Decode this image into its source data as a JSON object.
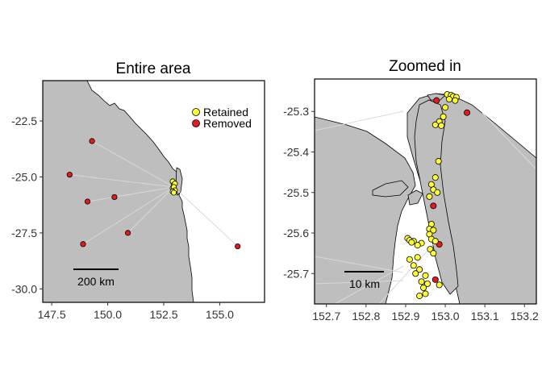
{
  "colors": {
    "land": "#bebebe",
    "sea": "#ffffff",
    "retained": "#ffff33",
    "removed": "#e41a1c",
    "outline": "#000000",
    "track": "#d9d9d9"
  },
  "legend": {
    "items": [
      {
        "label": "Retained",
        "color": "#ffff33"
      },
      {
        "label": "Removed",
        "color": "#e41a1c"
      }
    ],
    "placement": "top-right of left panel"
  },
  "chart_data": [
    {
      "type": "scatter",
      "title": "Entire area",
      "xlim": [
        147.1,
        157.0
      ],
      "ylim": [
        -30.6,
        -20.7
      ],
      "xticks": [
        147.5,
        150.0,
        152.5,
        155.0
      ],
      "xtick_labels": [
        "147.5",
        "150.0",
        "152.5",
        "155.0"
      ],
      "yticks": [
        -22.5,
        -25.0,
        -27.5,
        -30.0
      ],
      "ytick_labels": [
        "-22.5",
        "-25.0",
        "-27.5",
        "-30.0"
      ],
      "scale_bar_label": "200 km",
      "series": [
        {
          "name": "Removed",
          "points": [
            [
              149.3,
              -23.4
            ],
            [
              148.3,
              -24.9
            ],
            [
              149.1,
              -26.1
            ],
            [
              150.3,
              -25.9
            ],
            [
              148.9,
              -28.0
            ],
            [
              150.9,
              -27.5
            ],
            [
              155.8,
              -28.1
            ]
          ]
        },
        {
          "name": "Retained",
          "points": [
            [
              152.9,
              -25.2
            ],
            [
              152.95,
              -25.35
            ],
            [
              153.0,
              -25.3
            ],
            [
              152.9,
              -25.5
            ],
            [
              152.95,
              -25.45
            ],
            [
              153.0,
              -25.6
            ],
            [
              152.9,
              -25.65
            ],
            [
              152.95,
              -25.7
            ]
          ]
        }
      ]
    },
    {
      "type": "scatter",
      "title": "Zoomed in",
      "xlim": [
        152.67,
        153.23
      ],
      "ylim": [
        -25.775,
        -25.22
      ],
      "xticks": [
        152.7,
        152.8,
        152.9,
        153.0,
        153.1,
        153.2
      ],
      "xtick_labels": [
        "152.7",
        "152.8",
        "152.9",
        "153.0",
        "153.1",
        "153.2"
      ],
      "yticks": [
        -25.3,
        -25.4,
        -25.5,
        -25.6,
        -25.7
      ],
      "ytick_labels": [
        "-25.3",
        "-25.4",
        "-25.5",
        "-25.6",
        "-25.7"
      ],
      "scale_bar_label": "10 km",
      "series": [
        {
          "name": "Removed",
          "points": [
            [
              152.978,
              -25.273
            ],
            [
              153.055,
              -25.303
            ],
            [
              152.985,
              -25.628
            ],
            [
              152.97,
              -25.533
            ],
            [
              152.975,
              -25.715
            ]
          ]
        },
        {
          "name": "Retained",
          "points": [
            [
              153.005,
              -25.258
            ],
            [
              153.015,
              -25.26
            ],
            [
              153.02,
              -25.263
            ],
            [
              153.028,
              -25.265
            ],
            [
              153.01,
              -25.27
            ],
            [
              153.025,
              -25.273
            ],
            [
              153.0,
              -25.29
            ],
            [
              152.995,
              -25.313
            ],
            [
              152.985,
              -25.325
            ],
            [
              152.975,
              -25.333
            ],
            [
              152.99,
              -25.335
            ],
            [
              152.983,
              -25.423
            ],
            [
              152.975,
              -25.463
            ],
            [
              152.965,
              -25.48
            ],
            [
              152.97,
              -25.493
            ],
            [
              152.98,
              -25.5
            ],
            [
              152.96,
              -25.51
            ],
            [
              152.965,
              -25.578
            ],
            [
              152.96,
              -25.59
            ],
            [
              152.97,
              -25.593
            ],
            [
              152.96,
              -25.603
            ],
            [
              152.905,
              -25.613
            ],
            [
              152.91,
              -25.618
            ],
            [
              152.92,
              -25.62
            ],
            [
              152.915,
              -25.623
            ],
            [
              152.94,
              -25.625
            ],
            [
              152.93,
              -25.63
            ],
            [
              152.965,
              -25.615
            ],
            [
              152.975,
              -25.62
            ],
            [
              152.962,
              -25.64
            ],
            [
              152.97,
              -25.65
            ],
            [
              152.93,
              -25.66
            ],
            [
              152.91,
              -25.665
            ],
            [
              152.92,
              -25.68
            ],
            [
              152.935,
              -25.69
            ],
            [
              152.925,
              -25.7
            ],
            [
              152.95,
              -25.705
            ],
            [
              152.94,
              -25.72
            ],
            [
              152.955,
              -25.725
            ],
            [
              152.945,
              -25.735
            ],
            [
              152.95,
              -25.75
            ],
            [
              152.935,
              -25.755
            ],
            [
              152.985,
              -25.728
            ]
          ]
        }
      ]
    }
  ]
}
